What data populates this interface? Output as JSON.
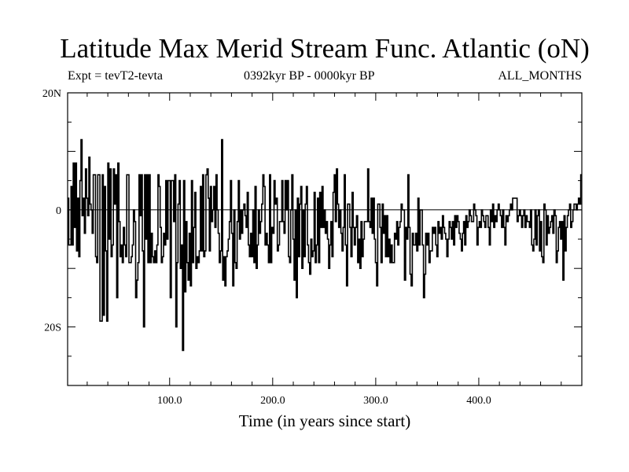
{
  "chart_data": {
    "type": "line",
    "title": "Latitude Max Merid Stream Func. Atlantic (oN)",
    "subtitle_left": "Expt = tevT2-tevta",
    "subtitle_center": "0392kyr BP - 0000kyr BP",
    "subtitle_right": "ALL_MONTHS",
    "xlabel": "Time (in years since start)",
    "ylabel": "",
    "xlim": [
      1,
      500
    ],
    "ylim": [
      -30,
      20
    ],
    "x_ticks": [
      100,
      200,
      300,
      400
    ],
    "x_tick_labels": [
      "100.0",
      "200.0",
      "300.0",
      "400.0"
    ],
    "y_ticks": [
      20,
      0,
      -20
    ],
    "y_tick_labels": [
      "20N",
      "0",
      "20S"
    ],
    "zero_line": true,
    "grid": false,
    "series": [
      {
        "values": [
          2,
          -6,
          -6,
          4,
          -6,
          8,
          -3,
          8,
          -7,
          2,
          -8,
          5,
          12,
          -1,
          2,
          -4,
          7,
          2,
          -1,
          9,
          1,
          0,
          -4,
          6,
          6,
          -8,
          -9,
          6,
          6,
          -19,
          -19,
          6,
          -18,
          4,
          -7,
          -19,
          8,
          -5,
          7,
          -8,
          -6,
          7,
          1,
          6,
          -15,
          8,
          -2,
          -8,
          -6,
          -9,
          -3,
          -6,
          -8,
          6,
          6,
          -9,
          -9,
          -8,
          -6,
          0,
          -2,
          -15,
          -12,
          -9,
          6,
          -1,
          6,
          -7,
          -20,
          6,
          -5,
          6,
          -9,
          6,
          -9,
          -4,
          -8,
          -9,
          -7,
          -9,
          -6,
          6,
          4,
          -3,
          -9,
          -8,
          -4,
          -6,
          5,
          -5,
          5,
          5,
          -15,
          5,
          5,
          -2,
          6,
          -20,
          -9,
          1,
          5,
          -10,
          -6,
          -24,
          5,
          -14,
          -2,
          -9,
          -12,
          -4,
          -13,
          5,
          -9,
          -3,
          3,
          -10,
          -8,
          -9,
          -7,
          4,
          -7,
          6,
          -8,
          -7,
          6,
          7,
          2,
          -7,
          4,
          -2,
          0,
          4,
          -3,
          6,
          0,
          -4,
          -9,
          -7,
          12,
          -12,
          -8,
          -13,
          -8,
          -7,
          -5,
          -2,
          5,
          -4,
          -13,
          0,
          -9,
          -10,
          -2,
          5,
          -5,
          0,
          -4,
          0,
          1,
          -1,
          -3,
          3,
          -6,
          -8,
          -4,
          -8,
          0,
          -9,
          4,
          -10,
          -6,
          0,
          -4,
          -2,
          1,
          6,
          4,
          -6,
          -4,
          -6,
          -9,
          6,
          -9,
          -3,
          -4,
          5,
          1,
          2,
          -7,
          -6,
          -2,
          -2,
          5,
          -2,
          -4,
          5,
          0,
          5,
          -8,
          -9,
          0,
          6,
          -5,
          -12,
          0,
          -15,
          2,
          -8,
          1,
          4,
          -10,
          0,
          -8,
          1,
          4,
          -6,
          -9,
          -11,
          -5,
          -8,
          -7,
          3,
          -9,
          -6,
          2,
          -9,
          3,
          -3,
          4,
          -3,
          0,
          -4,
          -2,
          -5,
          -10,
          -6,
          -2,
          -8,
          3,
          6,
          -2,
          7,
          1,
          -3,
          0,
          -4,
          -7,
          -3,
          6,
          -6,
          -13,
          1,
          1,
          -3,
          -8,
          3,
          -3,
          -6,
          -3,
          -1,
          -9,
          -5,
          -10,
          -2,
          -8,
          -5,
          -2,
          -2,
          -2,
          7,
          -2,
          -3,
          2,
          -4,
          2,
          -5,
          -9,
          -13,
          1,
          1,
          -3,
          -9,
          1,
          -4,
          -1,
          -8,
          -1,
          -8,
          -5,
          -9,
          -6,
          -9,
          -9,
          -4,
          -5,
          -2,
          -6,
          -3,
          -2,
          1,
          0,
          0,
          -12,
          -3,
          -5,
          6,
          -3,
          -11,
          -13,
          -4,
          -6,
          -6,
          -4,
          -7,
          2,
          -6,
          0,
          0,
          -6,
          -15,
          -11,
          -4,
          -6,
          -4,
          -9,
          -7,
          -7,
          -3,
          -4,
          -3,
          -6,
          -8,
          -2,
          -4,
          -3,
          -5,
          -1,
          -3,
          -4,
          -5,
          -8,
          -5,
          -2,
          -3,
          -5,
          -2,
          -6,
          -1,
          -3,
          -1,
          -2,
          -4,
          -5,
          -7,
          -4,
          -2,
          -6,
          -1,
          -3,
          -2,
          0,
          -1,
          -2,
          -2,
          1,
          0,
          -1,
          -6,
          -3,
          -2,
          -3,
          0,
          -1,
          -2,
          -3,
          -1,
          -1,
          -3,
          -6,
          0,
          -2,
          1,
          -3,
          -1,
          -2,
          0,
          1,
          0,
          -1,
          -3,
          0,
          -3,
          -6,
          -1,
          -2,
          -1,
          0,
          1,
          0,
          2,
          2,
          2,
          2,
          -2,
          -1,
          0,
          -1,
          -3,
          -1,
          0,
          -3,
          -1,
          -2,
          -2,
          -3,
          0,
          -6,
          -7,
          -5,
          0,
          -6,
          -1,
          0,
          -7,
          -2,
          -8,
          -9,
          1,
          0,
          -6,
          -1,
          -4,
          -3,
          -2,
          -1,
          -4,
          0,
          -1,
          -9,
          -7,
          -3,
          -2,
          -5,
          -2,
          -12,
          -1,
          -7,
          -3,
          -1,
          0,
          1,
          -3,
          -2,
          0,
          1,
          1,
          0,
          1,
          2,
          1,
          6
        ]
      }
    ]
  }
}
